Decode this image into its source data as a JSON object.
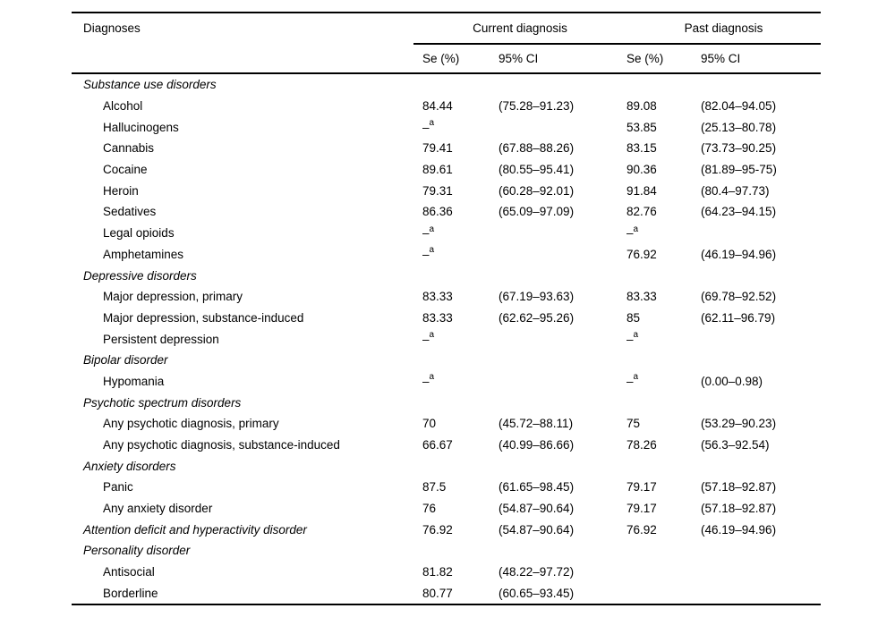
{
  "page": {
    "background": "#ffffff",
    "text_color": "#000000",
    "rule_color": "#000000"
  },
  "table": {
    "diagnoses_header": "Diagnoses",
    "spanners": [
      "Current diagnosis",
      "Past diagnosis"
    ],
    "sub_headers": [
      "Se (%)",
      "95% CI",
      "Se (%)",
      "95% CI"
    ],
    "footnote_marker": "a",
    "rows": [
      {
        "label": "Substance use disorders",
        "italic": true,
        "indent": false,
        "cells": [
          "",
          "",
          "",
          ""
        ]
      },
      {
        "label": "Alcohol",
        "italic": false,
        "indent": true,
        "cells": [
          "84.44",
          "(75.28–91.23)",
          "89.08",
          "(82.04–94.05)"
        ]
      },
      {
        "label": "Hallucinogens",
        "italic": false,
        "indent": true,
        "cells": [
          {
            "text": "–",
            "sup": "a"
          },
          "",
          "53.85",
          "(25.13–80.78)"
        ]
      },
      {
        "label": "Cannabis",
        "italic": false,
        "indent": true,
        "cells": [
          "79.41",
          "(67.88–88.26)",
          "83.15",
          "(73.73–90.25)"
        ]
      },
      {
        "label": "Cocaine",
        "italic": false,
        "indent": true,
        "cells": [
          "89.61",
          "(80.55–95.41)",
          "90.36",
          "(81.89–95-75)"
        ]
      },
      {
        "label": "Heroin",
        "italic": false,
        "indent": true,
        "cells": [
          "79.31",
          "(60.28–92.01)",
          "91.84",
          "(80.4–97.73)"
        ]
      },
      {
        "label": "Sedatives",
        "italic": false,
        "indent": true,
        "cells": [
          "86.36",
          "(65.09–97.09)",
          "82.76",
          "(64.23–94.15)"
        ]
      },
      {
        "label": "Legal opioids",
        "italic": false,
        "indent": true,
        "cells": [
          {
            "text": "–",
            "sup": "a"
          },
          "",
          {
            "text": "–",
            "sup": "a"
          },
          ""
        ]
      },
      {
        "label": "Amphetamines",
        "italic": false,
        "indent": true,
        "cells": [
          {
            "text": "–",
            "sup": "a"
          },
          "",
          "76.92",
          "(46.19–94.96)"
        ]
      },
      {
        "label": "Depressive disorders",
        "italic": true,
        "indent": false,
        "cells": [
          "",
          "",
          "",
          ""
        ]
      },
      {
        "label": "Major depression, primary",
        "italic": false,
        "indent": true,
        "cells": [
          "83.33",
          "(67.19–93.63)",
          "83.33",
          "(69.78–92.52)"
        ]
      },
      {
        "label": "Major depression, substance-induced",
        "italic": false,
        "indent": true,
        "cells": [
          "83.33",
          "(62.62–95.26)",
          "85",
          "(62.11–96.79)"
        ]
      },
      {
        "label": "Persistent depression",
        "italic": false,
        "indent": true,
        "cells": [
          {
            "text": "–",
            "sup": "a"
          },
          "",
          {
            "text": "–",
            "sup": "a"
          },
          ""
        ]
      },
      {
        "label": "Bipolar disorder",
        "italic": true,
        "indent": false,
        "cells": [
          "",
          "",
          "",
          ""
        ]
      },
      {
        "label": "Hypomania",
        "italic": false,
        "indent": true,
        "cells": [
          {
            "text": "–",
            "sup": "a"
          },
          "",
          {
            "text": "–",
            "sup": "a"
          },
          "(0.00–0.98)"
        ]
      },
      {
        "label": "Psychotic spectrum disorders",
        "italic": true,
        "indent": false,
        "cells": [
          "",
          "",
          "",
          ""
        ]
      },
      {
        "label": "Any psychotic diagnosis, primary",
        "italic": false,
        "indent": true,
        "cells": [
          "70",
          "(45.72–88.11)",
          "75",
          "(53.29–90.23)"
        ]
      },
      {
        "label": "Any psychotic diagnosis, substance-induced",
        "italic": false,
        "indent": true,
        "cells": [
          "66.67",
          "(40.99–86.66)",
          "78.26",
          "(56.3–92.54)"
        ]
      },
      {
        "label": "Anxiety disorders",
        "italic": true,
        "indent": false,
        "cells": [
          "",
          "",
          "",
          ""
        ]
      },
      {
        "label": "Panic",
        "italic": false,
        "indent": true,
        "cells": [
          "87.5",
          "(61.65–98.45)",
          "79.17",
          "(57.18–92.87)"
        ]
      },
      {
        "label": "Any anxiety disorder",
        "italic": false,
        "indent": true,
        "cells": [
          "76",
          "(54.87–90.64)",
          "79.17",
          "(57.18–92.87)"
        ]
      },
      {
        "label": "Attention deficit and hyperactivity disorder",
        "italic": true,
        "indent": false,
        "cells": [
          "76.92",
          "(54.87–90.64)",
          "76.92",
          "(46.19–94.96)"
        ]
      },
      {
        "label": "Personality disorder",
        "italic": true,
        "indent": false,
        "cells": [
          "",
          "",
          "",
          ""
        ]
      },
      {
        "label": "Antisocial",
        "italic": false,
        "indent": true,
        "cells": [
          "81.82",
          "(48.22–97.72)",
          "",
          ""
        ]
      },
      {
        "label": "Borderline",
        "italic": false,
        "indent": true,
        "cells": [
          "80.77",
          "(60.65–93.45)",
          "",
          ""
        ]
      }
    ]
  }
}
